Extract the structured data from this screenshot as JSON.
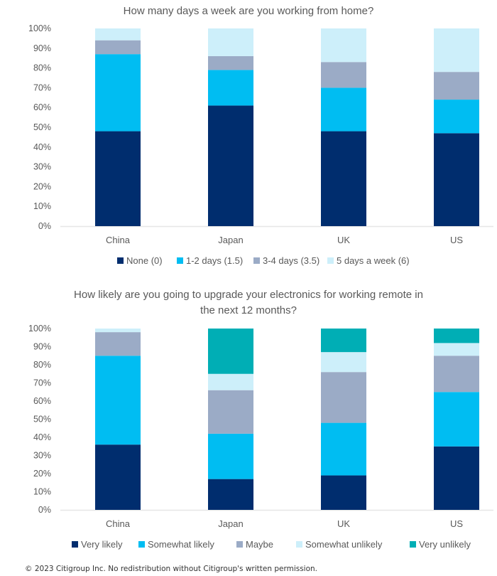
{
  "chart_data": [
    {
      "type": "bar",
      "stacked": true,
      "title": "How many days a week are you working from home?",
      "categories": [
        "China",
        "Japan",
        "UK",
        "US"
      ],
      "xlabel": "",
      "ylabel": "",
      "ylim": [
        0,
        100
      ],
      "yticks": [
        "0%",
        "10%",
        "20%",
        "30%",
        "40%",
        "50%",
        "60%",
        "70%",
        "80%",
        "90%",
        "100%"
      ],
      "grid": false,
      "legend_position": "bottom",
      "series": [
        {
          "name": "None (0)",
          "color": "#002D6E",
          "values": [
            48,
            61,
            48,
            47
          ]
        },
        {
          "name": "1-2 days (1.5)",
          "color": "#00BDF2",
          "values": [
            39,
            18,
            22,
            17
          ]
        },
        {
          "name": "3-4 days (3.5)",
          "color": "#9BABC6",
          "values": [
            7,
            7,
            13,
            14
          ]
        },
        {
          "name": "5 days a week (6)",
          "color": "#CDEFFA",
          "values": [
            6,
            14,
            17,
            22
          ]
        }
      ]
    },
    {
      "type": "bar",
      "stacked": true,
      "title": "How likely are you going to upgrade your electronics for working remote in the next 12 months?",
      "title_lines": [
        "How likely are you going to upgrade your electronics for working remote in",
        "the next 12 months?"
      ],
      "categories": [
        "China",
        "Japan",
        "UK",
        "US"
      ],
      "xlabel": "",
      "ylabel": "",
      "ylim": [
        0,
        100
      ],
      "yticks": [
        "0%",
        "10%",
        "20%",
        "30%",
        "40%",
        "50%",
        "60%",
        "70%",
        "80%",
        "90%",
        "100%"
      ],
      "grid": false,
      "legend_position": "bottom",
      "series": [
        {
          "name": "Very likely",
          "color": "#002D6E",
          "values": [
            36,
            17,
            19,
            35
          ]
        },
        {
          "name": "Somewhat likely",
          "color": "#00BDF2",
          "values": [
            49,
            25,
            29,
            30
          ]
        },
        {
          "name": "Maybe",
          "color": "#9BABC6",
          "values": [
            13,
            24,
            28,
            20
          ]
        },
        {
          "name": "Somewhat unlikely",
          "color": "#CDEFFA",
          "values": [
            2,
            9,
            11,
            7
          ]
        },
        {
          "name": "Very unlikely",
          "color": "#00AEB5",
          "values": [
            0,
            25,
            13,
            8
          ]
        }
      ]
    }
  ],
  "footer": "© 2023 Citigroup Inc. No redistribution without Citigroup's written permission."
}
